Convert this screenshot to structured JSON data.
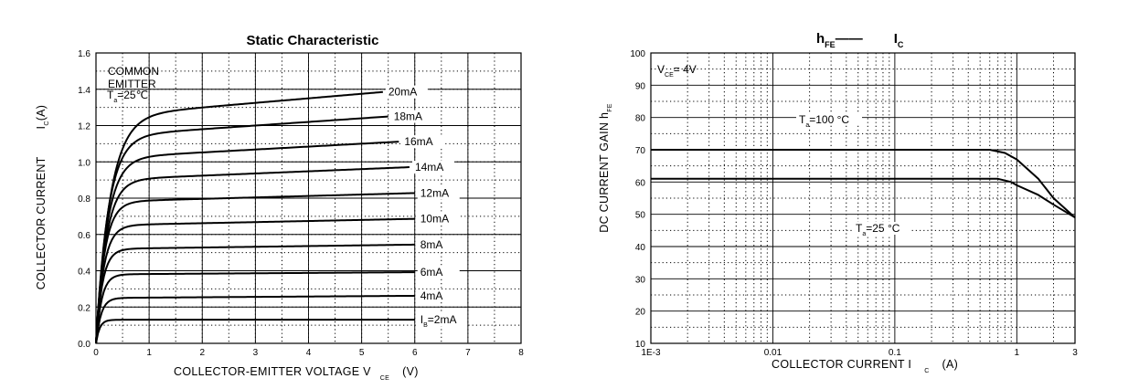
{
  "chart_data": [
    {
      "type": "line",
      "title": "Static Characteristic",
      "xlabel": "COLLECTOR-EMITTER VOLTAGE V",
      "xlabel_sub": "CE",
      "xlabel_unit": "(V)",
      "ylabel": "COLLECTOR CURRENT",
      "ylabel_sym": "I",
      "ylabel_sub": "C",
      "ylabel_unit": "(A)",
      "xlim": [
        0,
        8
      ],
      "ylim": [
        0,
        1.6
      ],
      "x_ticks": [
        "0",
        "1",
        "2",
        "3",
        "4",
        "5",
        "6",
        "7",
        "8"
      ],
      "y_ticks": [
        "0.0",
        "0.2",
        "0.4",
        "0.6",
        "0.8",
        "1.0",
        "1.2",
        "1.4",
        "1.6"
      ],
      "grid": true,
      "annotation": {
        "line1": "COMMON",
        "line2": "EMITTER",
        "t": "T",
        "t_sub": "a",
        "t_val": "=25℃"
      },
      "series": [
        {
          "name": "2mA",
          "label_prefix": "I",
          "label_sub": "B",
          "label_val": "=2mA",
          "sat": 0.13,
          "slope": 0.0,
          "knee": 0.18,
          "end": 6.0
        },
        {
          "name": "4mA",
          "label_val": "4mA",
          "sat": 0.25,
          "slope": 0.002,
          "knee": 0.25,
          "end": 6.0
        },
        {
          "name": "6mA",
          "label_val": "6mA",
          "sat": 0.38,
          "slope": 0.002,
          "knee": 0.28,
          "end": 6.0
        },
        {
          "name": "8mA",
          "label_val": "8mA",
          "sat": 0.52,
          "slope": 0.004,
          "knee": 0.32,
          "end": 6.0
        },
        {
          "name": "10mA",
          "label_val": "10mA",
          "sat": 0.65,
          "slope": 0.006,
          "knee": 0.38,
          "end": 6.0
        },
        {
          "name": "12mA",
          "label_val": "12mA",
          "sat": 0.78,
          "slope": 0.008,
          "knee": 0.42,
          "end": 6.0
        },
        {
          "name": "14mA",
          "label_val": "14mA",
          "sat": 0.9,
          "slope": 0.012,
          "knee": 0.5,
          "end": 5.9
        },
        {
          "name": "16mA",
          "label_val": "16mA",
          "sat": 1.02,
          "slope": 0.016,
          "knee": 0.55,
          "end": 5.7
        },
        {
          "name": "18mA",
          "label_val": "18mA",
          "sat": 1.14,
          "slope": 0.02,
          "knee": 0.6,
          "end": 5.5
        },
        {
          "name": "20mA",
          "label_val": "20mA",
          "sat": 1.25,
          "slope": 0.025,
          "knee": 0.7,
          "end": 5.4
        }
      ]
    },
    {
      "type": "line",
      "title_part1": "h",
      "title_sub1": "FE",
      "title_dash": "——",
      "title_part2": "I",
      "title_sub2": "C",
      "xlabel": "COLLECTOR CURRENT  I",
      "xlabel_sub": "C",
      "xlabel_unit": "(A)",
      "ylabel": "DC CURRENT GAIN h",
      "ylabel_sub": "FE",
      "x_scale": "log",
      "xlim": [
        0.001,
        3
      ],
      "ylim": [
        10,
        100
      ],
      "x_ticks": [
        "1E-3",
        "0.01",
        "0.1",
        "1",
        "3"
      ],
      "y_ticks": [
        "10",
        "20",
        "30",
        "40",
        "50",
        "60",
        "70",
        "80",
        "90",
        "100"
      ],
      "grid": true,
      "annotation_vce": {
        "v": "V",
        "v_sub": "CE",
        "v_val": "= 4V"
      },
      "series": [
        {
          "name": "T=100 °C",
          "label_t": "T",
          "label_sub": "a",
          "label_val": "=100 °C",
          "x": [
            0.001,
            0.01,
            0.1,
            0.6,
            0.8,
            1.0,
            1.5,
            2.0,
            3.0
          ],
          "y": [
            70,
            70,
            70,
            70,
            69,
            67,
            61,
            55,
            49
          ]
        },
        {
          "name": "T=25 °C",
          "label_t": "T",
          "label_sub": "a",
          "label_val": "=25 °C",
          "x": [
            0.001,
            0.01,
            0.1,
            0.7,
            0.9,
            1.0,
            1.5,
            2.0,
            3.0
          ],
          "y": [
            61,
            61,
            61,
            61,
            60,
            59,
            56,
            53,
            49
          ]
        }
      ]
    }
  ]
}
